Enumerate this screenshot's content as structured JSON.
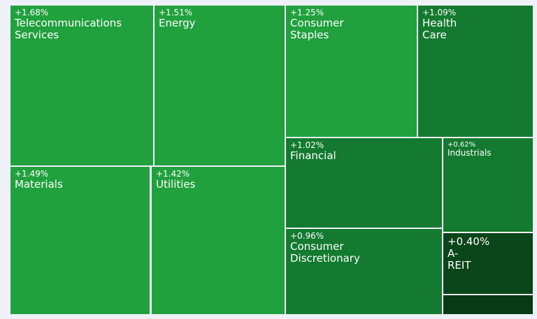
{
  "chart_data": {
    "type": "treemap",
    "categories": [
      "Telecommunications Services",
      "Energy",
      "Materials",
      "Utilities",
      "Consumer Staples",
      "Health Care",
      "Financial",
      "Industrials",
      "Consumer Discretionary",
      "A-REIT",
      null
    ],
    "values": [
      1.68,
      1.51,
      1.49,
      1.42,
      1.25,
      1.09,
      1.02,
      0.62,
      0.96,
      0.4,
      null
    ],
    "value_labels": [
      "+1.68%",
      "+1.51%",
      "+1.49%",
      "+1.42%",
      "+1.25%",
      "+1.09%",
      "+1.02%",
      "+0.62%",
      "+0.96%",
      "+0.40%",
      null
    ]
  }
}
